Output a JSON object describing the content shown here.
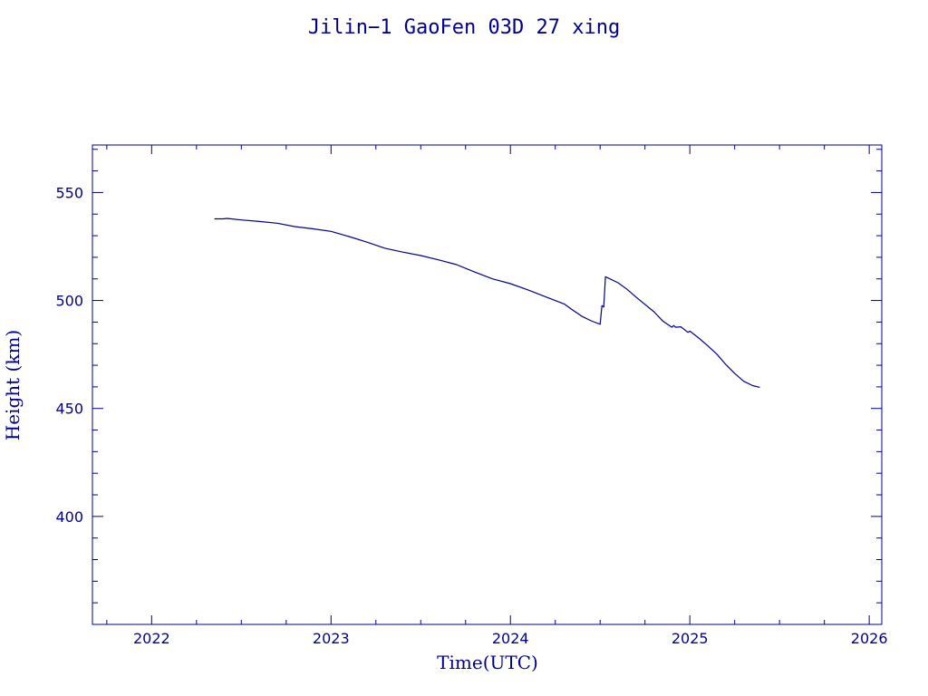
{
  "chart_data": {
    "type": "line",
    "title": "Jilin−1 GaoFen 03D 27 xing",
    "xlabel": "Time(UTC)",
    "ylabel": "Height (km)",
    "xlim": [
      2021.67,
      2026.07
    ],
    "ylim": [
      350,
      572
    ],
    "x_ticks": [
      2022,
      2023,
      2024,
      2025,
      2026
    ],
    "y_ticks": [
      400,
      450,
      500,
      550
    ],
    "grid": false,
    "colors": {
      "line": "#00008B",
      "axes": "#00008B"
    },
    "series": [
      {
        "x": [
          2022.35,
          2022.4,
          2022.42,
          2022.5,
          2022.6,
          2022.7,
          2022.8,
          2022.9,
          2023.0,
          2023.1,
          2023.2,
          2023.3,
          2023.4,
          2023.5,
          2023.6,
          2023.7,
          2023.8,
          2023.9,
          2024.0,
          2024.1,
          2024.2,
          2024.3,
          2024.34,
          2024.4,
          2024.45,
          2024.5,
          2024.51,
          2024.52,
          2024.53,
          2024.54,
          2024.6,
          2024.65,
          2024.7,
          2024.8,
          2024.85,
          2024.9,
          2024.91,
          2024.92,
          2024.95,
          2024.99,
          2025.0,
          2025.05,
          2025.1,
          2025.15,
          2025.2,
          2025.25,
          2025.3,
          2025.35,
          2025.39
        ],
        "y": [
          537.8,
          537.8,
          538.0,
          537.3,
          536.6,
          535.8,
          534.2,
          533.2,
          532.0,
          529.6,
          527.0,
          524.2,
          522.4,
          520.8,
          518.8,
          516.6,
          513.2,
          510.0,
          507.8,
          504.8,
          501.6,
          498.4,
          496.0,
          492.6,
          490.6,
          489.0,
          497.6,
          497.0,
          511.0,
          510.6,
          508.2,
          505.2,
          501.6,
          494.8,
          490.4,
          487.6,
          488.4,
          487.6,
          487.8,
          485.2,
          485.8,
          482.6,
          479.0,
          475.2,
          470.4,
          466.2,
          462.6,
          460.6,
          459.8
        ]
      }
    ]
  }
}
